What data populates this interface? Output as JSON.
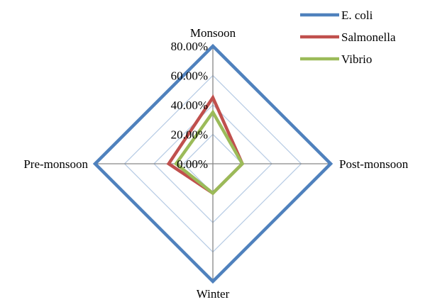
{
  "chart_data": {
    "type": "radar",
    "categories": [
      "Monsoon",
      "Post-monsoon",
      "Winter",
      "Pre-monsoon"
    ],
    "series": [
      {
        "name": "E. coli",
        "color": "#4F81BD",
        "values": [
          80,
          80,
          80,
          80
        ]
      },
      {
        "name": "Salmonella",
        "color": "#C0504D",
        "values": [
          45,
          20,
          20,
          30
        ]
      },
      {
        "name": "Vibrio",
        "color": "#9BBB59",
        "values": [
          35,
          20,
          20,
          25
        ]
      }
    ],
    "ticks": [
      "0.00%",
      "20.00%",
      "40.00%",
      "60.00%",
      "80.00%"
    ],
    "tick_values": [
      0,
      20,
      40,
      60,
      80
    ],
    "rlim": [
      0,
      80
    ],
    "unit": "%",
    "grid": true,
    "grid_color": "#B9CDE5",
    "axis_color": "#868686",
    "legend": "top-right"
  }
}
